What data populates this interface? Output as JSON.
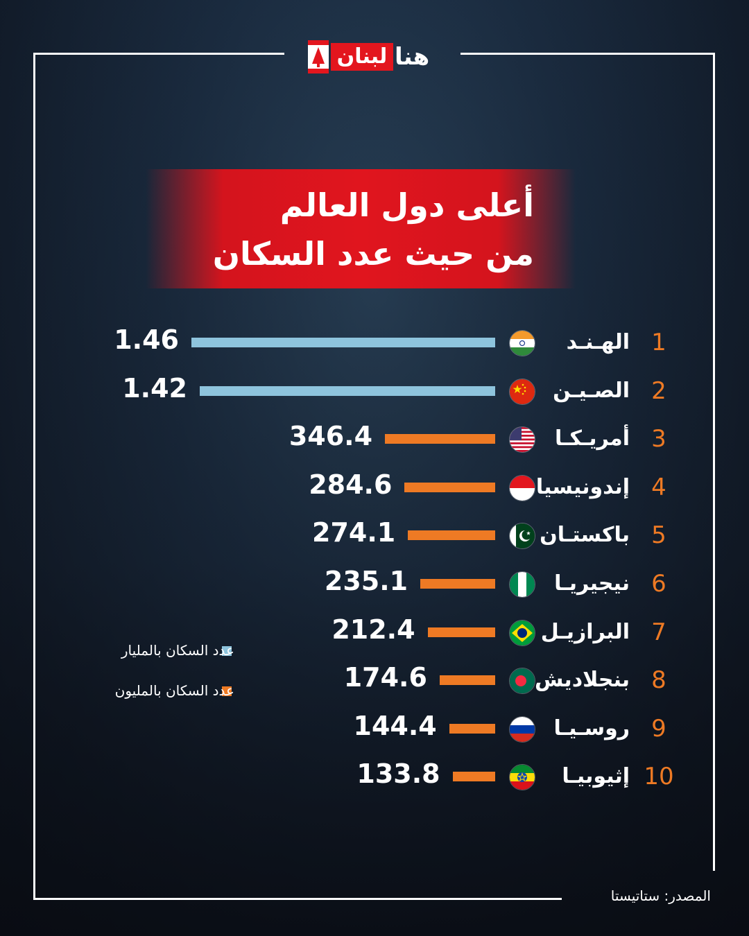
{
  "logo": {
    "box_text": "لبنان",
    "text": "هنا"
  },
  "title": {
    "line1": "أعلى دول العالم",
    "line2": "من حيث عدد السكان"
  },
  "colors": {
    "billion_bar": "#8ec4dd",
    "million_bar": "#ee7a24",
    "accent_red": "#e0151e",
    "rank": "#ee7a24"
  },
  "chart_data": {
    "type": "bar",
    "categories": [
      "الهـنـد",
      "الصـيـن",
      "أمريـكـا",
      "إندونيسيا",
      "باكستـان",
      "نيجيريـا",
      "البرازيـل",
      "بنجلاديش",
      "روسـيـا",
      "إثيوبيـا"
    ],
    "ranks": [
      "1",
      "2",
      "3",
      "4",
      "5",
      "6",
      "7",
      "8",
      "9",
      "10"
    ],
    "values": [
      1.46,
      1.42,
      346.4,
      284.6,
      274.1,
      235.1,
      212.4,
      174.6,
      144.4,
      133.8
    ],
    "value_labels": [
      "1.46",
      "1.42",
      "346.4",
      "284.6",
      "274.1",
      "235.1",
      "212.4",
      "174.6",
      "144.4",
      "133.8"
    ],
    "units": [
      "billion",
      "billion",
      "million",
      "million",
      "million",
      "million",
      "million",
      "million",
      "million",
      "million"
    ],
    "flags": [
      "india-flag-icon",
      "china-flag-icon",
      "usa-flag-icon",
      "indonesia-flag-icon",
      "pakistan-flag-icon",
      "nigeria-flag-icon",
      "brazil-flag-icon",
      "bangladesh-flag-icon",
      "russia-flag-icon",
      "ethiopia-flag-icon"
    ],
    "legend": [
      {
        "label": "عدد السكان بالمليار",
        "color": "#8ec4dd"
      },
      {
        "label": "عدد السكان بالمليون",
        "color": "#ee7a24"
      }
    ]
  },
  "source": "المصدر: ستاتيستا"
}
